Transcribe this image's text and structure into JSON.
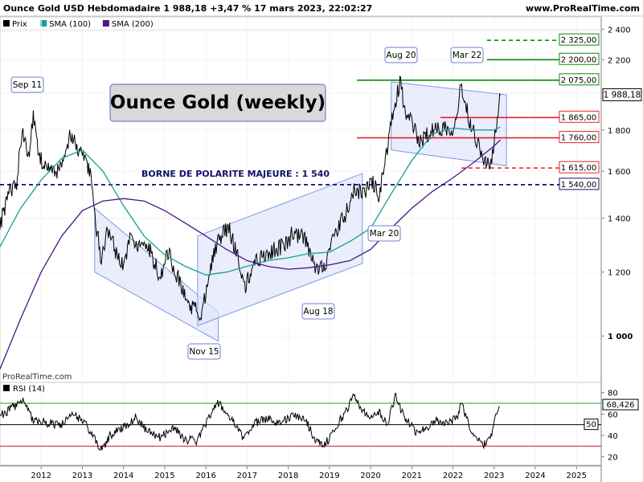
{
  "header": {
    "title": "Ounce Gold USD Hebdomadaire 1 988,18 +3,47 % 17 mars 2023, 22:02:27",
    "site": "www.ProRealTime.com",
    "badge": "1 988,18"
  },
  "legend": [
    {
      "label": "Prix",
      "color": "#000000"
    },
    {
      "label": "SMA (100)",
      "color": "#1a9e96"
    },
    {
      "label": "SMA (200)",
      "color": "#4b1684"
    }
  ],
  "watermark": "ProRealTime.com",
  "big_title": "Ounce Gold (weekly)",
  "polarity_label": "BORNE DE POLARITE MAJEURE : 1 540",
  "annotations": [
    "Sep 11",
    "Nov 15",
    "Aug 18",
    "Mar 20",
    "Aug 20",
    "Mar 22"
  ],
  "level_labels": [
    "2 325,00",
    "2 200,00",
    "2 075,00",
    "1 865,00",
    "1 760,00",
    "1 615,00",
    "1 540,00"
  ],
  "rsi_label": "RSI (14)",
  "rsi_value": "68,426",
  "rsi_level_label": "50",
  "colors": {
    "green": "#0a8a0a",
    "red": "#e8202a",
    "navy": "#10106a",
    "channel_fill": "#dfe6fb",
    "channel_stroke": "#7b98e6"
  },
  "chart_data": [
    {
      "type": "line",
      "title": "Ounce Gold USD Hebdomadaire",
      "scale": "log",
      "ylim": [
        880,
        2480
      ],
      "xlim": [
        2011.0,
        2025.6
      ],
      "y_ticks": [
        "1 000",
        "1 200",
        "1 400",
        "1 600",
        "1 800",
        "2 000",
        "2 200",
        "2 400"
      ],
      "x_ticks": [
        "2012",
        "2013",
        "2014",
        "2015",
        "2016",
        "2017",
        "2018",
        "2019",
        "2020",
        "2021",
        "2022",
        "2023",
        "2024",
        "2025"
      ],
      "series": [
        {
          "name": "Prix",
          "x": [
            2011.0,
            2011.2,
            2011.4,
            2011.55,
            2011.68,
            2011.8,
            2011.95,
            2012.2,
            2012.45,
            2012.7,
            2012.85,
            2013.05,
            2013.2,
            2013.3,
            2013.45,
            2013.6,
            2013.75,
            2013.95,
            2014.2,
            2014.4,
            2014.6,
            2014.9,
            2015.05,
            2015.3,
            2015.55,
            2015.9,
            2016.1,
            2016.35,
            2016.55,
            2016.75,
            2016.95,
            2017.15,
            2017.4,
            2017.7,
            2017.95,
            2018.1,
            2018.4,
            2018.65,
            2018.9,
            2019.1,
            2019.4,
            2019.6,
            2019.9,
            2020.05,
            2020.2,
            2020.4,
            2020.6,
            2020.72,
            2020.85,
            2021.05,
            2021.2,
            2021.35,
            2021.55,
            2021.8,
            2021.95,
            2022.1,
            2022.2,
            2022.4,
            2022.6,
            2022.8,
            2022.95,
            2023.05,
            2023.15
          ],
          "y": [
            1370,
            1500,
            1540,
            1800,
            1650,
            1870,
            1660,
            1620,
            1600,
            1770,
            1720,
            1670,
            1570,
            1400,
            1250,
            1350,
            1300,
            1220,
            1330,
            1290,
            1290,
            1180,
            1280,
            1190,
            1100,
            1060,
            1220,
            1330,
            1360,
            1270,
            1140,
            1230,
            1260,
            1280,
            1300,
            1340,
            1320,
            1210,
            1230,
            1320,
            1420,
            1510,
            1515,
            1560,
            1480,
            1700,
            1950,
            2063,
            1880,
            1820,
            1730,
            1780,
            1800,
            1820,
            1790,
            1900,
            2045,
            1850,
            1740,
            1630,
            1650,
            1810,
            1988.18
          ]
        },
        {
          "name": "SMA (100)",
          "x": [
            2011.0,
            2011.5,
            2012.0,
            2012.5,
            2013.0,
            2013.5,
            2014.0,
            2014.5,
            2015.0,
            2015.5,
            2016.0,
            2016.5,
            2017.0,
            2017.5,
            2018.0,
            2018.5,
            2019.0,
            2019.5,
            2020.0,
            2020.5,
            2021.0,
            2021.5,
            2022.0,
            2022.5,
            2023.0,
            2023.15
          ],
          "y": [
            1290,
            1440,
            1560,
            1660,
            1700,
            1600,
            1450,
            1330,
            1260,
            1220,
            1190,
            1200,
            1220,
            1240,
            1250,
            1265,
            1270,
            1310,
            1360,
            1500,
            1650,
            1780,
            1810,
            1800,
            1800,
            1815
          ]
        },
        {
          "name": "SMA (200)",
          "x": [
            2011.0,
            2011.5,
            2012.0,
            2012.5,
            2013.0,
            2013.5,
            2014.0,
            2014.5,
            2015.0,
            2015.5,
            2016.0,
            2016.5,
            2017.0,
            2017.5,
            2018.0,
            2018.5,
            2019.0,
            2019.5,
            2020.0,
            2020.5,
            2021.0,
            2021.5,
            2022.0,
            2022.5,
            2023.0,
            2023.15
          ],
          "y": [
            910,
            1050,
            1200,
            1330,
            1430,
            1470,
            1480,
            1470,
            1430,
            1380,
            1330,
            1280,
            1240,
            1220,
            1210,
            1215,
            1225,
            1240,
            1280,
            1360,
            1440,
            1510,
            1570,
            1640,
            1720,
            1750
          ]
        }
      ],
      "horizontal_levels": [
        {
          "value": 2325,
          "label": "2 325,00",
          "color": "green",
          "style": "dashed"
        },
        {
          "value": 2200,
          "label": "2 200,00",
          "color": "green",
          "style": "solid"
        },
        {
          "value": 2075,
          "label": "2 075,00",
          "color": "green",
          "style": "solid"
        },
        {
          "value": 1865,
          "label": "1 865,00",
          "color": "red",
          "style": "solid"
        },
        {
          "value": 1760,
          "label": "1 760,00",
          "color": "red",
          "style": "solid"
        },
        {
          "value": 1615,
          "label": "1 615,00",
          "color": "red",
          "style": "dashed"
        },
        {
          "value": 1540,
          "label": "1 540,00",
          "color": "navy",
          "style": "dashed"
        }
      ],
      "channels": [
        {
          "from": [
            2013.3,
            1440
          ],
          "to": [
            2016.3,
            1070
          ],
          "lower_from": [
            2013.3,
            1200
          ],
          "lower_to": [
            2016.3,
            985
          ]
        },
        {
          "from": [
            2015.8,
            1330
          ],
          "to": [
            2019.8,
            1590
          ],
          "lower_from": [
            2015.8,
            1030
          ],
          "lower_to": [
            2019.8,
            1230
          ]
        },
        {
          "from": [
            2020.5,
            2065
          ],
          "to": [
            2023.3,
            1990
          ],
          "lower_from": [
            2020.5,
            1700
          ],
          "lower_to": [
            2023.3,
            1625
          ]
        }
      ],
      "current": {
        "x": 2023.15,
        "y": 1988.18,
        "label": "1 988,18"
      }
    },
    {
      "type": "line",
      "title": "RSI (14)",
      "ylim": [
        13,
        88
      ],
      "y_ticks": [
        "20",
        "40",
        "60",
        "80"
      ],
      "series": [
        {
          "name": "RSI (14)",
          "x": [
            2011.0,
            2011.3,
            2011.55,
            2011.8,
            2012.1,
            2012.5,
            2012.8,
            2013.1,
            2013.3,
            2013.45,
            2013.7,
            2014.0,
            2014.3,
            2014.6,
            2014.9,
            2015.2,
            2015.5,
            2015.8,
            2016.1,
            2016.3,
            2016.6,
            2016.9,
            2017.2,
            2017.5,
            2017.8,
            2018.1,
            2018.4,
            2018.7,
            2018.9,
            2019.2,
            2019.5,
            2019.6,
            2019.9,
            2020.2,
            2020.4,
            2020.6,
            2020.8,
            2021.1,
            2021.3,
            2021.6,
            2021.9,
            2022.1,
            2022.2,
            2022.5,
            2022.8,
            2022.95,
            2023.05,
            2023.15
          ],
          "y": [
            58,
            66,
            72,
            55,
            52,
            50,
            60,
            50,
            36,
            26,
            41,
            48,
            57,
            43,
            38,
            48,
            36,
            35,
            60,
            70,
            56,
            38,
            52,
            56,
            52,
            58,
            56,
            33,
            32,
            50,
            70,
            77,
            58,
            62,
            50,
            77,
            58,
            43,
            46,
            54,
            52,
            57,
            71,
            38,
            31,
            44,
            62,
            68.426
          ]
        }
      ],
      "levels": [
        {
          "value": 70,
          "color": "green"
        },
        {
          "value": 50,
          "color": "black",
          "label": "50"
        },
        {
          "value": 30,
          "color": "red"
        }
      ],
      "current": {
        "label": "68,426"
      }
    }
  ]
}
